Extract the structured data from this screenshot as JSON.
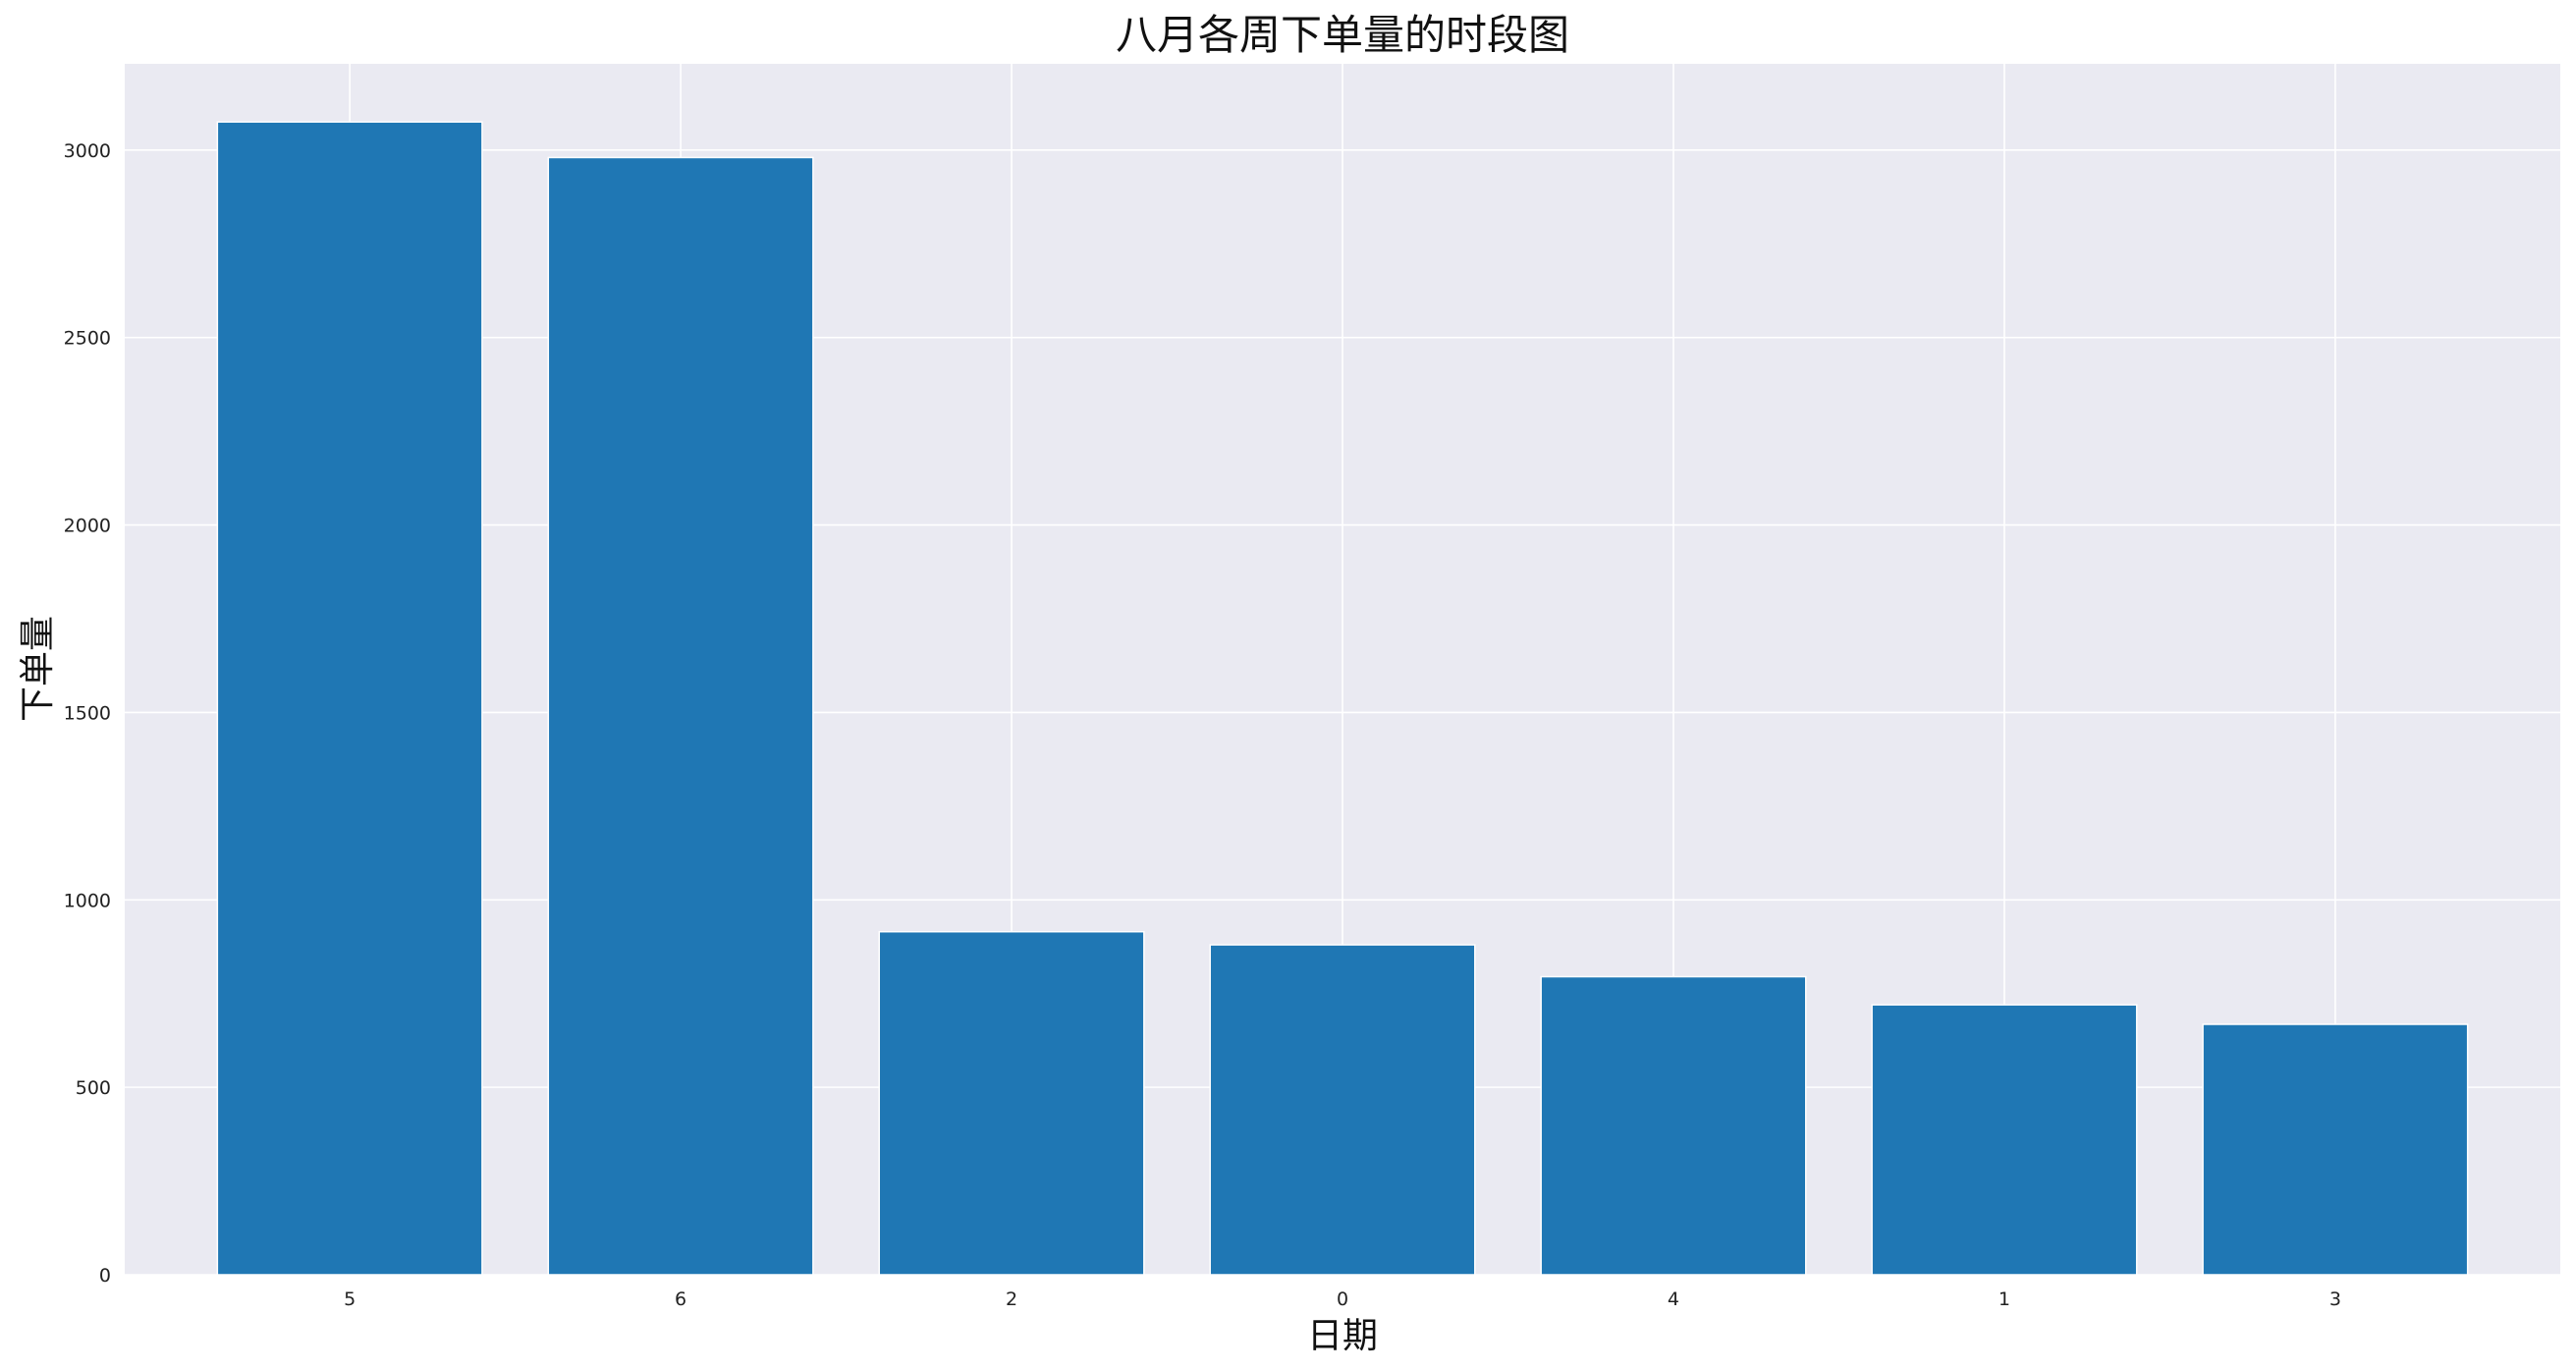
{
  "chart_data": {
    "type": "bar",
    "title": "八月各周下单量的时段图",
    "xlabel": "日期",
    "ylabel": "下单量",
    "categories": [
      "5",
      "6",
      "2",
      "0",
      "4",
      "1",
      "3"
    ],
    "values": [
      3075,
      2980,
      915,
      880,
      795,
      720,
      668
    ],
    "ylim": [
      0,
      3230
    ],
    "yticks": [
      0,
      500,
      1000,
      1500,
      2000,
      2500,
      3000
    ],
    "grid": true,
    "legend": "none",
    "colors": {
      "bar": "#1f77b4",
      "plot_background": "#eaeaf2",
      "grid": "#ffffff"
    }
  }
}
